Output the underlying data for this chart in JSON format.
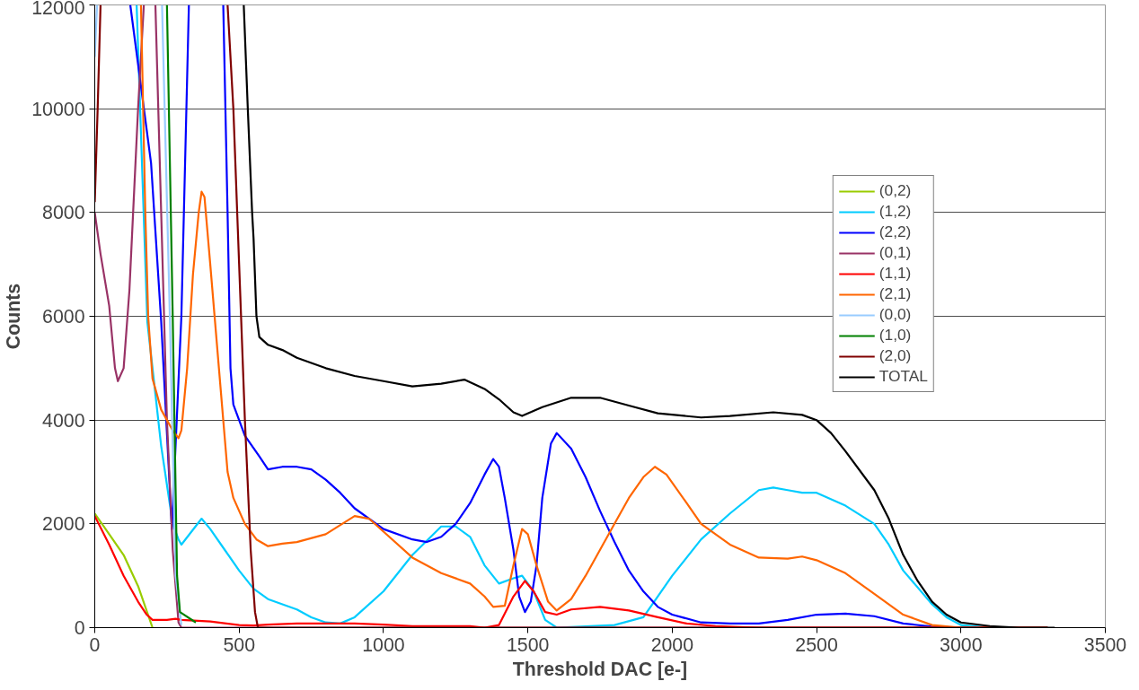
{
  "chart_data": {
    "type": "line",
    "xlabel": "Threshold DAC [e-]",
    "ylabel": "Counts",
    "xlim": [
      0,
      3500
    ],
    "ylim": [
      0,
      12000
    ],
    "xticks": [
      0,
      500,
      1000,
      1500,
      2000,
      2500,
      3000,
      3500
    ],
    "yticks": [
      0,
      2000,
      4000,
      6000,
      8000,
      10000,
      12000
    ],
    "grid": "y",
    "legend": "top right",
    "line_style": "solid",
    "marker": "none",
    "series": [
      {
        "name": "(0,2)",
        "color": "#99cc00",
        "x": [
          0,
          50,
          100,
          150,
          200
        ],
        "values": [
          2200,
          1800,
          1400,
          800,
          0
        ]
      },
      {
        "name": "(1,2)",
        "color": "#00ccff",
        "x": [
          145,
          182,
          230,
          270,
          290,
          300,
          370,
          400,
          450,
          500,
          550,
          600,
          700,
          750,
          800,
          850,
          900,
          1000,
          1100,
          1200,
          1250,
          1300,
          1350,
          1400,
          1450,
          1480,
          1520,
          1560,
          1600,
          1800,
          1900,
          2000,
          2100,
          2200,
          2300,
          2350,
          2400,
          2450,
          2500,
          2600,
          2700,
          2750,
          2800,
          2900,
          2950,
          3000,
          3100,
          3300
        ],
        "values": [
          12000,
          5900,
          3500,
          2000,
          1700,
          1600,
          2100,
          1900,
          1500,
          1100,
          750,
          550,
          350,
          200,
          100,
          80,
          200,
          700,
          1400,
          1950,
          1950,
          1750,
          1200,
          850,
          950,
          1000,
          700,
          150,
          0,
          50,
          200,
          1000,
          1700,
          2200,
          2650,
          2700,
          2650,
          2600,
          2600,
          2350,
          2000,
          1600,
          1100,
          450,
          200,
          50,
          0,
          0
        ]
      },
      {
        "name": "(2,2)",
        "color": "#0000ff",
        "x": [
          123,
          195,
          230,
          267,
          300,
          326,
          385,
          445,
          460,
          470,
          480,
          520,
          570,
          600,
          650,
          700,
          750,
          800,
          850,
          900,
          1000,
          1100,
          1150,
          1200,
          1250,
          1300,
          1350,
          1380,
          1400,
          1420,
          1450,
          1470,
          1490,
          1510,
          1530,
          1550,
          1580,
          1600,
          1650,
          1700,
          1750,
          1800,
          1850,
          1900,
          1950,
          2000,
          2100,
          2200,
          2300,
          2400,
          2500,
          2600,
          2700,
          2800,
          2900,
          3000,
          3300
        ],
        "values": [
          12000,
          8950,
          5900,
          1900,
          6000,
          12000,
          null,
          12000,
          8000,
          5000,
          4300,
          3700,
          3300,
          3050,
          3100,
          3100,
          3050,
          2850,
          2600,
          2300,
          1900,
          1700,
          1650,
          1750,
          2000,
          2400,
          2950,
          3250,
          3100,
          2500,
          1500,
          600,
          300,
          500,
          1200,
          2500,
          3550,
          3750,
          3450,
          2900,
          2250,
          1650,
          1100,
          700,
          400,
          250,
          100,
          80,
          80,
          150,
          250,
          270,
          220,
          80,
          20,
          0,
          0
        ]
      },
      {
        "name": "(0,1)",
        "color": "#993366",
        "x": [
          0,
          20,
          50,
          70,
          80,
          100,
          120,
          150,
          170,
          190,
          210,
          230,
          250,
          270,
          290,
          300,
          3300
        ],
        "values": [
          8000,
          7200,
          6200,
          5000,
          4750,
          5000,
          6500,
          10000,
          12000,
          null,
          12000,
          8000,
          4000,
          1500,
          100,
          0,
          0
        ]
      },
      {
        "name": "(1,1)",
        "color": "#ff0000",
        "x": [
          0,
          50,
          100,
          150,
          180,
          200,
          250,
          280,
          300,
          400,
          500,
          550,
          600,
          700,
          800,
          900,
          1000,
          1100,
          1300,
          1350,
          1400,
          1450,
          1490,
          1520,
          1560,
          1600,
          1650,
          1750,
          1850,
          1950,
          2050,
          2150,
          2300,
          3300
        ],
        "values": [
          2150,
          1600,
          1000,
          500,
          250,
          150,
          150,
          170,
          150,
          120,
          50,
          40,
          60,
          80,
          80,
          80,
          60,
          30,
          30,
          0,
          50,
          600,
          900,
          700,
          300,
          250,
          350,
          400,
          330,
          200,
          80,
          30,
          0,
          0
        ]
      },
      {
        "name": "(2,1)",
        "color": "#ff6600",
        "x": [
          160,
          175,
          185,
          200,
          230,
          270,
          290,
          300,
          320,
          340,
          360,
          370,
          380,
          400,
          430,
          460,
          480,
          520,
          560,
          600,
          650,
          700,
          800,
          900,
          950,
          1000,
          1100,
          1200,
          1300,
          1350,
          1380,
          1420,
          1450,
          1480,
          1500,
          1530,
          1570,
          1600,
          1650,
          1700,
          1750,
          1800,
          1850,
          1900,
          1940,
          1980,
          2050,
          2100,
          2200,
          2300,
          2400,
          2450,
          2500,
          2600,
          2700,
          2800,
          2900,
          3000,
          3300
        ],
        "values": [
          12000,
          8000,
          6000,
          4800,
          4200,
          3800,
          3650,
          3800,
          5000,
          6800,
          8000,
          8400,
          8300,
          7000,
          5000,
          3000,
          2500,
          2000,
          1700,
          1570,
          1620,
          1650,
          1800,
          2150,
          2100,
          1850,
          1350,
          1050,
          850,
          600,
          400,
          420,
          1200,
          1900,
          1800,
          1200,
          500,
          330,
          550,
          1000,
          1500,
          2000,
          2500,
          2900,
          3100,
          2950,
          2400,
          2000,
          1600,
          1350,
          1330,
          1370,
          1300,
          1050,
          650,
          250,
          50,
          0,
          0
        ]
      },
      {
        "name": "(0,0)",
        "color": "#99ccff",
        "x": [
          0,
          8,
          100,
          233,
          260,
          280,
          300
        ],
        "values": [
          11000,
          12000,
          null,
          12000,
          6000,
          1000,
          50
        ]
      },
      {
        "name": "(1,0)",
        "color": "#008000",
        "x": [
          250,
          270,
          285,
          295,
          350
        ],
        "values": [
          12000,
          6000,
          1000,
          300,
          100
        ]
      },
      {
        "name": "(2,0)",
        "color": "#800000",
        "x": [
          0,
          10,
          20,
          200,
          460,
          480,
          500,
          520,
          540,
          555,
          565,
          3300
        ],
        "values": [
          8200,
          10000,
          12000,
          null,
          12000,
          10000,
          7000,
          4000,
          1500,
          300,
          0,
          0
        ]
      },
      {
        "name": "TOTAL",
        "color": "#000000",
        "x": [
          516,
          530,
          545,
          550,
          560,
          570,
          600,
          650,
          700,
          800,
          900,
          1000,
          1100,
          1200,
          1280,
          1350,
          1400,
          1450,
          1480,
          1550,
          1650,
          1750,
          1850,
          1950,
          2100,
          2200,
          2350,
          2450,
          2500,
          2550,
          2600,
          2700,
          2750,
          2800,
          2850,
          2900,
          2950,
          3000,
          3100,
          3200,
          3325
        ],
        "values": [
          12000,
          10000,
          8000,
          7500,
          6000,
          5600,
          5450,
          5350,
          5200,
          5000,
          4850,
          4750,
          4650,
          4700,
          4780,
          4600,
          4400,
          4150,
          4080,
          4250,
          4430,
          4430,
          4280,
          4130,
          4050,
          4080,
          4150,
          4100,
          4000,
          3750,
          3400,
          2650,
          2100,
          1400,
          900,
          500,
          250,
          100,
          30,
          0,
          0
        ]
      }
    ]
  }
}
